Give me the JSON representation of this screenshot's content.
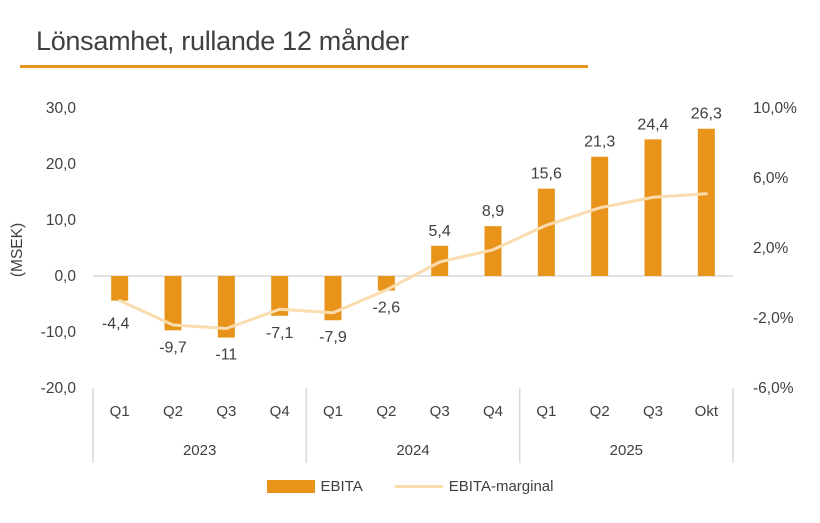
{
  "title": "Lönsamhet, rullande 12 månder",
  "colors": {
    "accent": "#e8941a",
    "bar": "#e8941a",
    "line": "#fbdcae",
    "text": "#404040",
    "axis": "#d9d9d9"
  },
  "chart_data": {
    "type": "bar",
    "title": "Lönsamhet, rullande 12 månder",
    "ylabel": "(MSEK)",
    "y2label": "",
    "ylim": [
      -20,
      30
    ],
    "y_ticks": [
      "30,0",
      "20,0",
      "10,0",
      "0,0",
      "-10,0",
      "-20,0"
    ],
    "y_tick_values": [
      30,
      20,
      10,
      0,
      -10,
      -20
    ],
    "y2lim": [
      -6,
      10
    ],
    "y2_ticks": [
      "10,0%",
      "6,0%",
      "2,0%",
      "-2,0%",
      "-6,0%"
    ],
    "y2_tick_values": [
      10,
      6,
      2,
      -2,
      -6
    ],
    "categories": [
      "Q1",
      "Q2",
      "Q3",
      "Q4",
      "Q1",
      "Q2",
      "Q3",
      "Q4",
      "Q1",
      "Q2",
      "Q3",
      "Okt"
    ],
    "groups": [
      {
        "label": "2023",
        "count": 4
      },
      {
        "label": "2024",
        "count": 4
      },
      {
        "label": "2025",
        "count": 4
      }
    ],
    "series": [
      {
        "name": "EBITA",
        "type": "bar",
        "axis": "left",
        "values": [
          -4.4,
          -9.7,
          -11,
          -7.1,
          -7.9,
          -2.6,
          5.4,
          8.9,
          15.6,
          21.3,
          24.4,
          26.3
        ],
        "labels": [
          "-4,4",
          "-9,7",
          "-11",
          "-7,1",
          "-7,9",
          "-2,6",
          "5,4",
          "8,9",
          "15,6",
          "21,3",
          "24,4",
          "26,3"
        ]
      },
      {
        "name": "EBITA-marginal",
        "type": "line",
        "axis": "right",
        "unit": "%",
        "values": [
          -1.0,
          -2.4,
          -2.6,
          -1.5,
          -1.7,
          -0.4,
          1.2,
          1.9,
          3.3,
          4.3,
          4.9,
          5.1
        ]
      }
    ],
    "legend": "bottom",
    "grid": false
  },
  "legend": {
    "items": [
      {
        "label": "EBITA",
        "kind": "bar"
      },
      {
        "label": "EBITA-marginal",
        "kind": "line"
      }
    ]
  }
}
